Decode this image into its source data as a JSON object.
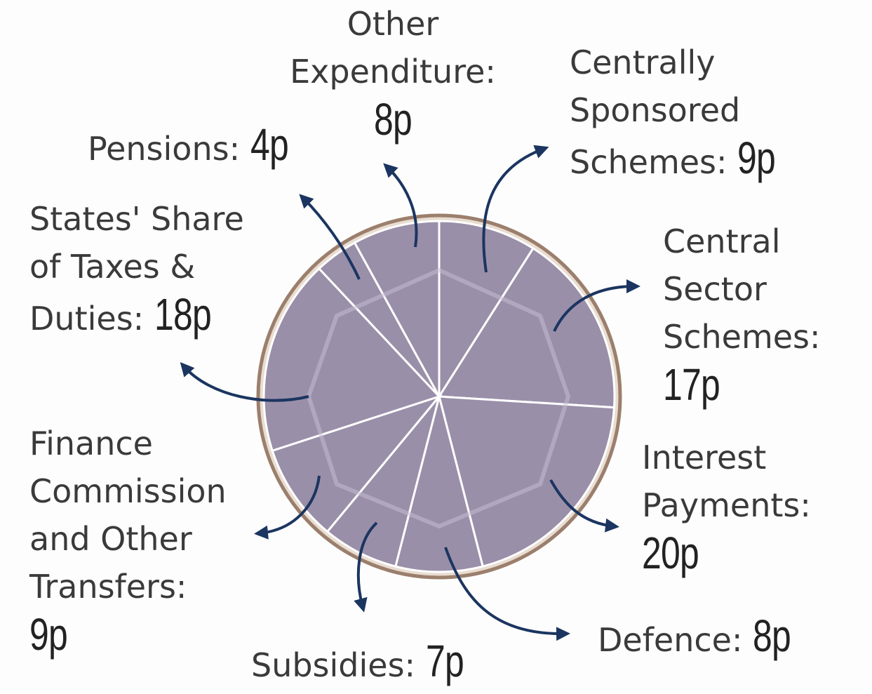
{
  "chart_data": {
    "type": "pie",
    "categories": [
      "Centrally Sponsored Schemes:",
      "Central Sector Schemes:",
      "Interest Payments:",
      "Defence:",
      "Subsidies:",
      "Finance Commission and Other Transfers:",
      "States' Share of Taxes & Duties:",
      "Pensions:",
      "Other Expenditure:"
    ],
    "values": [
      9,
      17,
      20,
      8,
      7,
      9,
      18,
      4,
      8
    ],
    "value_labels": [
      "9p",
      "17p",
      "20p",
      "8p",
      "7p",
      "9p",
      "18p",
      "4p",
      "8p"
    ],
    "color": "#9a8fa9"
  }
}
